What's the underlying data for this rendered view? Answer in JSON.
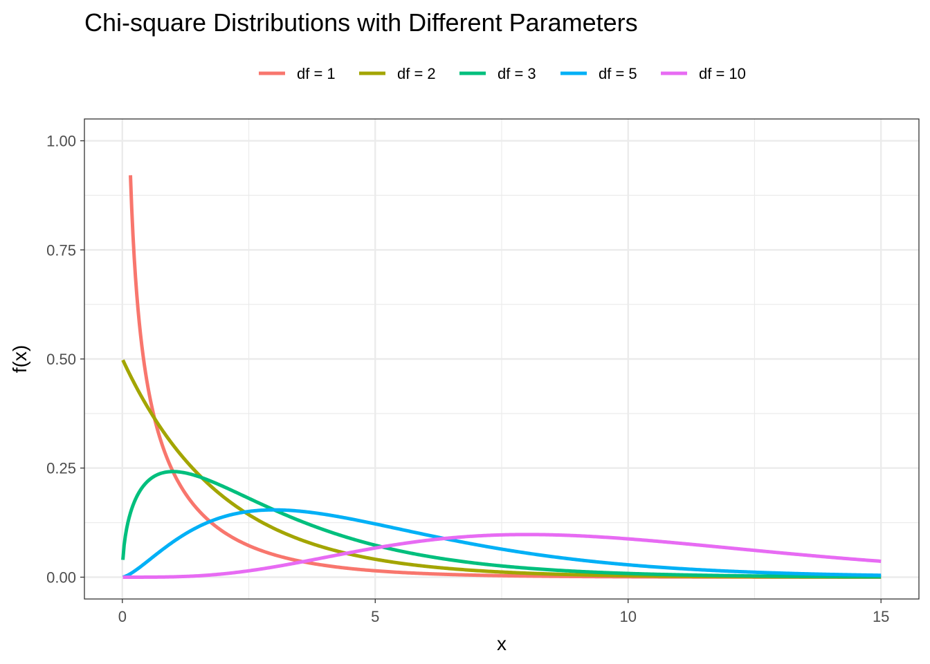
{
  "chart_data": {
    "type": "line",
    "title": "Chi-square Distributions with Different Parameters",
    "xlabel": "x",
    "ylabel": "f(x)",
    "xlim": [
      -0.75,
      15.75
    ],
    "ylim": [
      -0.05,
      1.05
    ],
    "x_domain": [
      0.01,
      15
    ],
    "y_max_shown": 1.0,
    "x_ticks": [
      0,
      5,
      10,
      15
    ],
    "x_tick_labels": [
      "0",
      "5",
      "10",
      "15"
    ],
    "x_minor_ticks": [
      2.5,
      7.5,
      12.5
    ],
    "y_ticks": [
      0,
      0.25,
      0.5,
      0.75,
      1.0
    ],
    "y_tick_labels": [
      "0.00",
      "0.25",
      "0.50",
      "0.75",
      "1.00"
    ],
    "y_minor_ticks": [
      0.125,
      0.375,
      0.625,
      0.875
    ],
    "grid": true,
    "legend_position": "top",
    "function": "chi-square density",
    "series": [
      {
        "name": "df = 1",
        "df": 1,
        "color": "#F8766D"
      },
      {
        "name": "df = 2",
        "df": 2,
        "color": "#A3A500"
      },
      {
        "name": "df = 3",
        "df": 3,
        "color": "#00BF7D"
      },
      {
        "name": "df = 5",
        "df": 5,
        "color": "#00B0F6"
      },
      {
        "name": "df = 10",
        "df": 10,
        "color": "#E76BF3"
      }
    ]
  }
}
